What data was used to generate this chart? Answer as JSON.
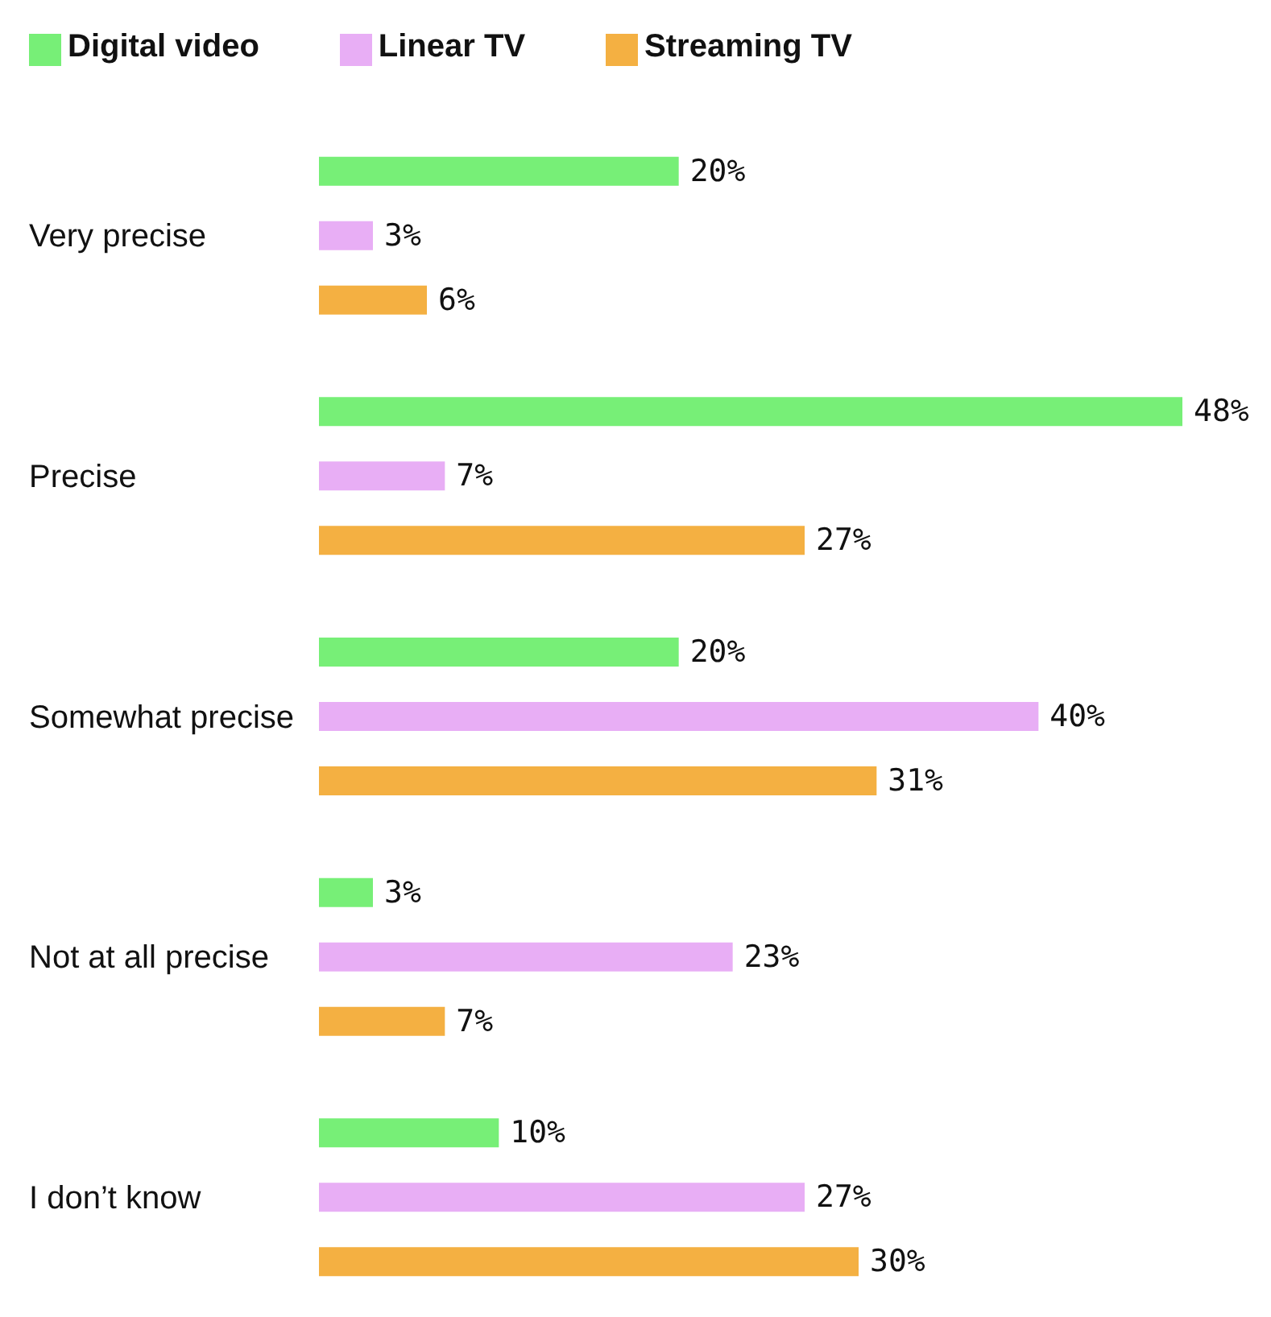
{
  "chart_data": {
    "type": "bar",
    "orientation": "horizontal",
    "categories": [
      "Very precise",
      "Precise",
      "Somewhat precise",
      "Not at all precise",
      "I don’t know"
    ],
    "series": [
      {
        "name": "Digital video",
        "color": "#77ef77",
        "values": [
          20,
          48,
          20,
          3,
          10
        ],
        "value_labels": [
          "20%",
          "48%",
          "20%",
          "3%",
          "10%"
        ]
      },
      {
        "name": "Linear TV",
        "color": "#e8aef5",
        "values": [
          3,
          7,
          40,
          23,
          27
        ],
        "value_labels": [
          "3%",
          "7%",
          "40%",
          "23%",
          "27%"
        ]
      },
      {
        "name": "Streaming TV",
        "color": "#f4b042",
        "values": [
          6,
          27,
          31,
          7,
          30
        ],
        "value_labels": [
          "6%",
          "27%",
          "31%",
          "7%",
          "30%"
        ]
      }
    ],
    "legend": "top left",
    "grid": false
  }
}
